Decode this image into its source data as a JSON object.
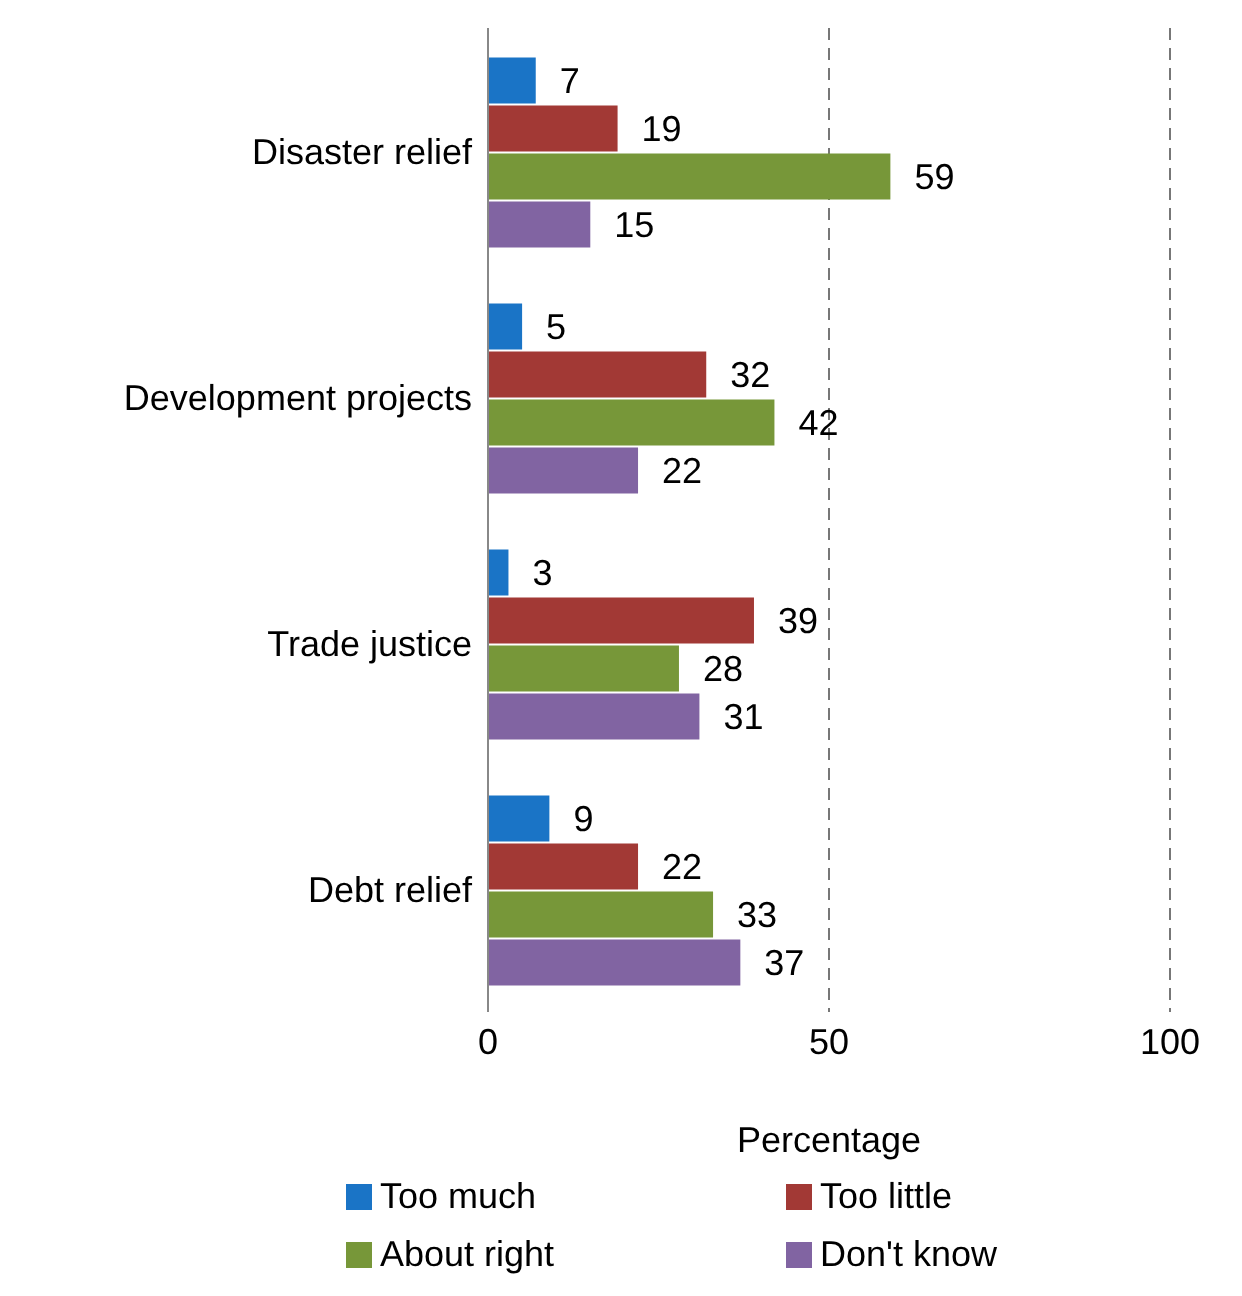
{
  "chart_data": {
    "type": "bar",
    "orientation": "horizontal",
    "xlabel": "Percentage",
    "categories": [
      "Disaster relief",
      "Development projects",
      "Trade justice",
      "Debt relief"
    ],
    "series": [
      {
        "name": "Too much",
        "color": "#1a74c6",
        "values": [
          7,
          5,
          3,
          9
        ]
      },
      {
        "name": "Too little",
        "color": "#a23935",
        "values": [
          19,
          32,
          39,
          22
        ]
      },
      {
        "name": "About right",
        "color": "#779739",
        "values": [
          59,
          42,
          28,
          33
        ]
      },
      {
        "name": "Don't know",
        "color": "#8164a2",
        "values": [
          15,
          22,
          31,
          37
        ]
      }
    ],
    "xlim": [
      0,
      100
    ],
    "xticks": [
      0,
      50,
      100
    ],
    "grid": "x",
    "legend": "bottom",
    "data_labels": true
  }
}
